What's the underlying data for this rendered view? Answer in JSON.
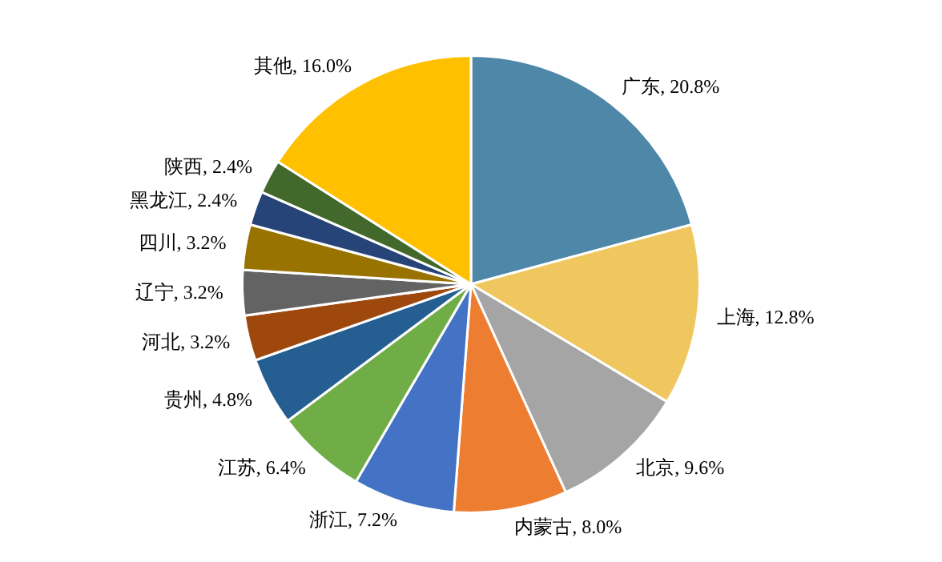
{
  "chart_data": {
    "type": "pie",
    "categories": [
      "广东",
      "上海",
      "北京",
      "内蒙古",
      "浙江",
      "江苏",
      "贵州",
      "河北",
      "辽宁",
      "四川",
      "黑龙江",
      "陕西",
      "其他"
    ],
    "values": [
      20.8,
      12.8,
      9.6,
      8.0,
      7.2,
      6.4,
      4.8,
      3.2,
      3.2,
      3.2,
      2.4,
      2.4,
      16.0
    ],
    "value_labels": [
      "20.8%",
      "12.8%",
      "9.6%",
      "8.0%",
      "7.2%",
      "6.4%",
      "4.8%",
      "3.2%",
      "3.2%",
      "3.2%",
      "2.4%",
      "2.4%",
      "16.0%"
    ],
    "colors": [
      "#4e87a8",
      "#f0c75e",
      "#a5a5a5",
      "#ed7d31",
      "#4472c4",
      "#70ad47",
      "#255e91",
      "#9e480e",
      "#636363",
      "#997300",
      "#264478",
      "#43682b",
      "#ffc000"
    ],
    "legend": false
  }
}
